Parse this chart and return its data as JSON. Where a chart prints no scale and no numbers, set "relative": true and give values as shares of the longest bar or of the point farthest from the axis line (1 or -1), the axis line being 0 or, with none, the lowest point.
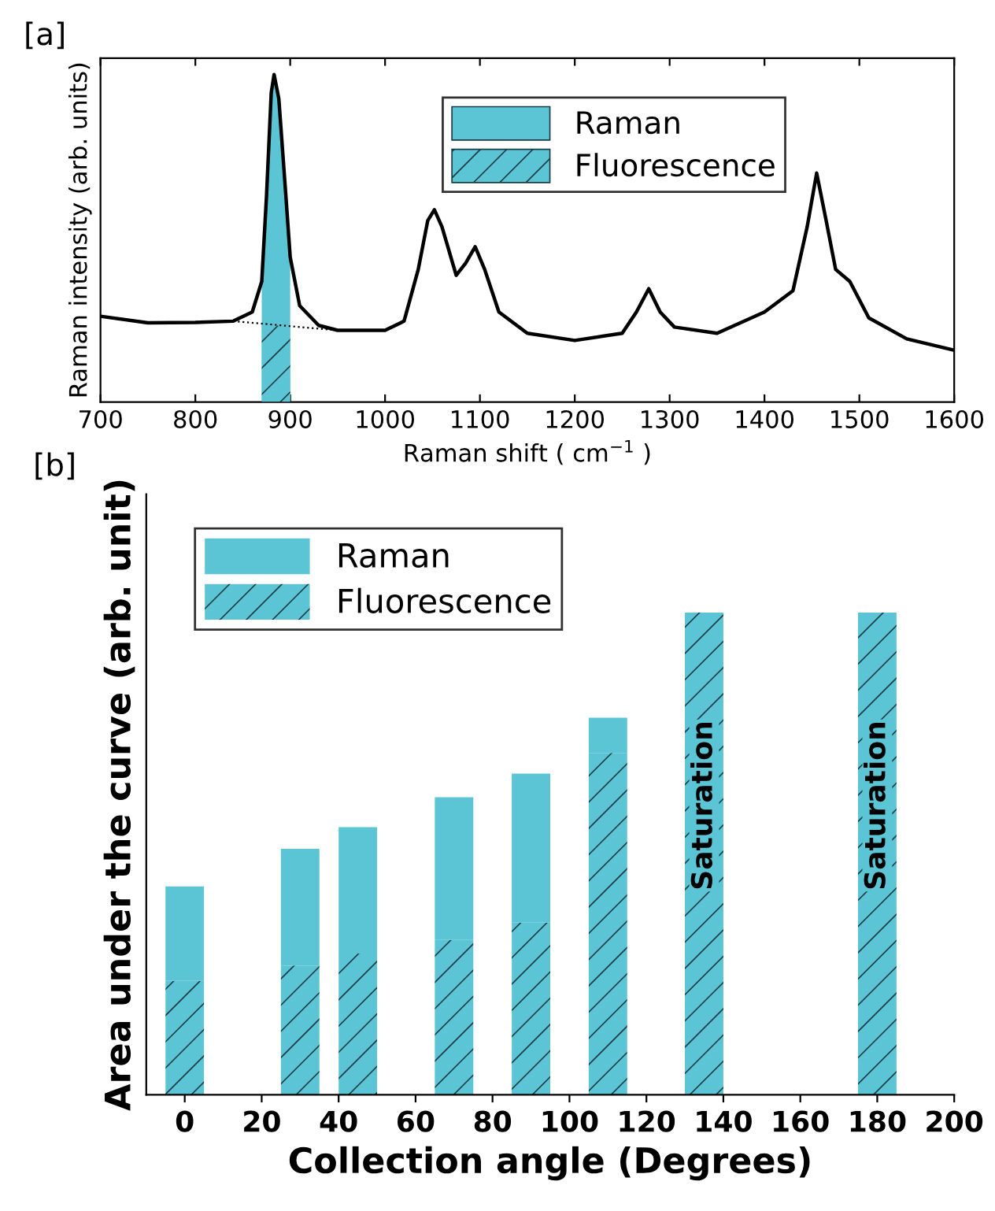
{
  "chart_data": [
    {
      "type": "line",
      "relative": true,
      "xlabel": "Raman shift ( cm$^{−1}$ )",
      "ylabel": "Raman intensity (arb. units)",
      "xlim": [
        700,
        1600
      ],
      "xticks": [
        700,
        800,
        900,
        1000,
        1100,
        1200,
        1300,
        1400,
        1500,
        1600
      ],
      "grid": false,
      "legend": "top right",
      "tick_labels": "x",
      "annotations": [
        "[a]"
      ],
      "series": [
        {
          "name": "Fluorescence",
          "type": "area",
          "color": "#5bc5d6",
          "x": [
            870,
            880,
            890,
            900
          ],
          "values": [
            0.238,
            0.235,
            0.232,
            0.229
          ]
        },
        {
          "name": "Raman",
          "type": "area",
          "color": "#5bc5d6",
          "x": [
            870,
            875,
            880,
            883,
            888,
            895,
            900
          ],
          "values": [
            0.368,
            0.628,
            0.944,
            1.0,
            0.926,
            0.647,
            0.442
          ]
        },
        {
          "type": "line",
          "color": "#000000",
          "x": [
            700,
            750,
            800,
            840,
            860,
            870,
            875,
            880,
            883,
            888,
            895,
            900,
            910,
            930,
            950,
            1000,
            1020,
            1035,
            1045,
            1052,
            1060,
            1075,
            1085,
            1095,
            1105,
            1120,
            1150,
            1200,
            1250,
            1265,
            1278,
            1290,
            1305,
            1350,
            1400,
            1430,
            1445,
            1455,
            1465,
            1475,
            1490,
            1510,
            1550,
            1600
          ],
          "values": [
            0.262,
            0.242,
            0.243,
            0.247,
            0.275,
            0.368,
            0.628,
            0.944,
            1.0,
            0.926,
            0.647,
            0.442,
            0.294,
            0.234,
            0.219,
            0.219,
            0.247,
            0.405,
            0.554,
            0.587,
            0.535,
            0.387,
            0.424,
            0.474,
            0.405,
            0.275,
            0.21,
            0.188,
            0.21,
            0.275,
            0.346,
            0.275,
            0.229,
            0.21,
            0.275,
            0.34,
            0.535,
            0.699,
            0.554,
            0.405,
            0.368,
            0.257,
            0.193,
            0.158
          ]
        },
        {
          "type": "line",
          "color": "#000000",
          "line_style": "dotted",
          "x": [
            840,
            950
          ],
          "values": [
            0.247,
            0.219
          ]
        }
      ]
    },
    {
      "type": "bar",
      "relative": true,
      "stacked": true,
      "xlabel": "Collection angle (Degrees)",
      "ylabel": "Area under the curve (arb. unit)",
      "x": [
        0,
        30,
        45,
        70,
        90,
        110,
        135,
        180
      ],
      "xlim": [
        -10,
        200
      ],
      "xticks": [
        0,
        20,
        40,
        60,
        80,
        100,
        120,
        140,
        160,
        180,
        200
      ],
      "grid": false,
      "legend": "top left",
      "tick_labels": "x",
      "annotations": [
        "[b]",
        "Saturation",
        "Saturation"
      ],
      "series": [
        {
          "name": "Fluorescence",
          "color": "#5bc5d6",
          "values": [
            0.236,
            0.268,
            0.293,
            0.321,
            0.357,
            0.709,
            1,
            1
          ]
        },
        {
          "name": "Raman",
          "color": "#5bc5d6",
          "values": [
            0.196,
            0.242,
            0.262,
            0.296,
            0.309,
            0.073,
            null,
            null
          ]
        }
      ]
    }
  ]
}
